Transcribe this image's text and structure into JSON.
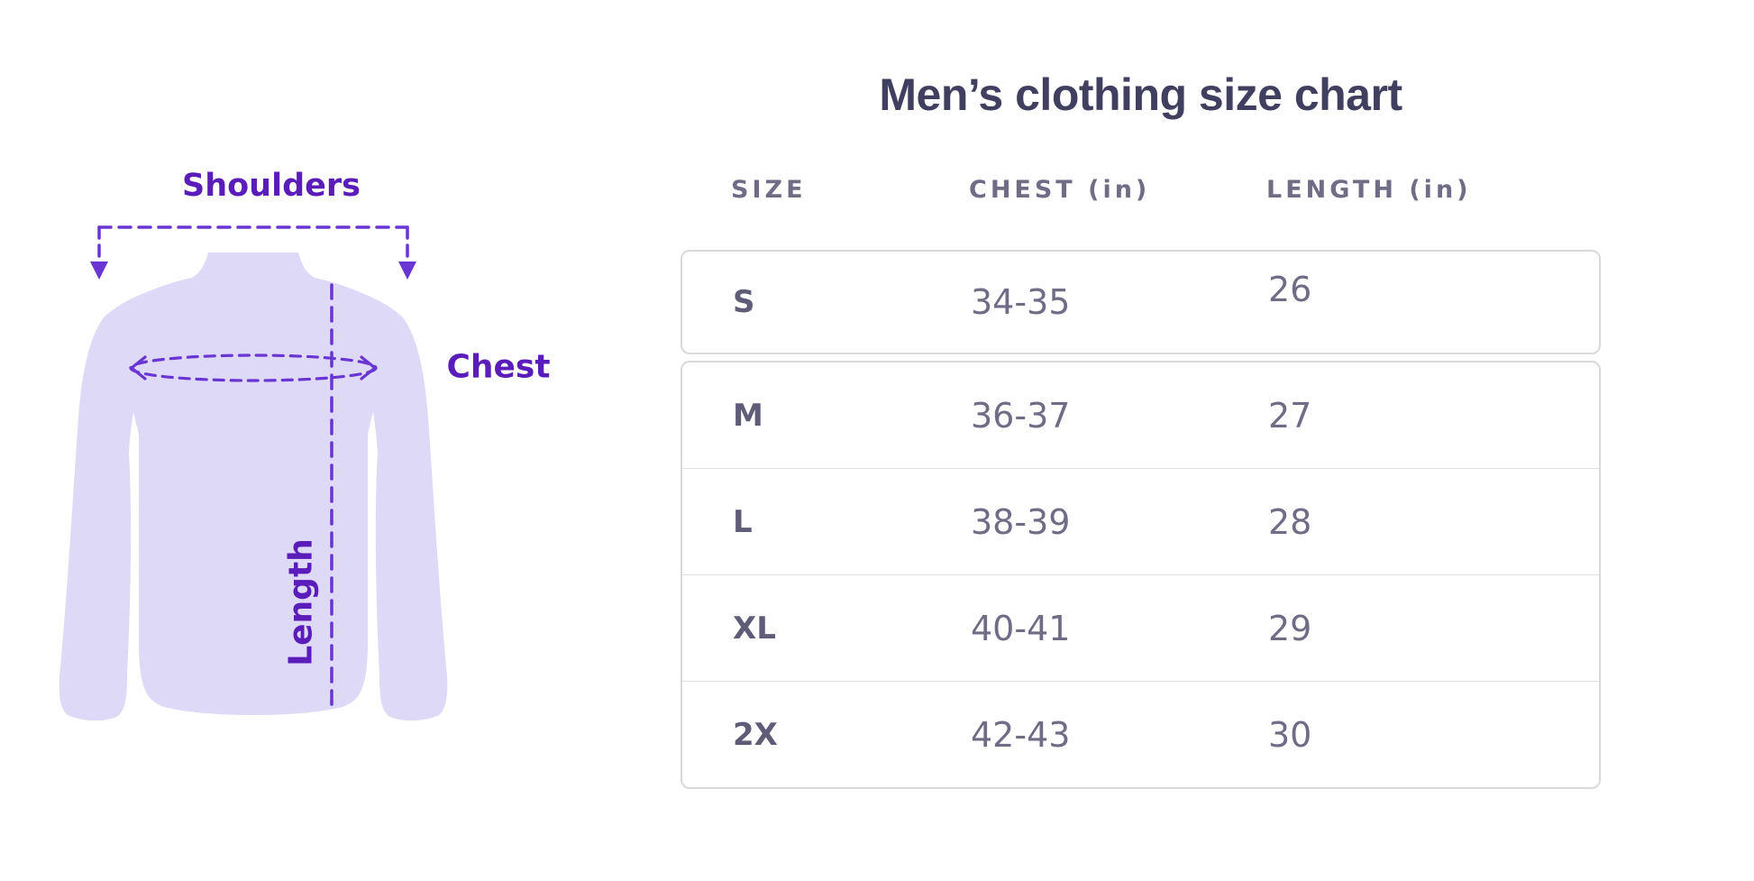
{
  "title": "Men’s clothing size chart",
  "figure": {
    "labels": {
      "shoulders": "Shoulders",
      "chest": "Chest",
      "length": "Length"
    }
  },
  "table": {
    "columns": [
      "SIZE",
      "CHEST (in)",
      "LENGTH (in)"
    ],
    "rows": [
      {
        "size": "S",
        "chest": "34-35",
        "length": "26"
      },
      {
        "size": "M",
        "chest": "36-37",
        "length": "27"
      },
      {
        "size": "L",
        "chest": "38-39",
        "length": "28"
      },
      {
        "size": "XL",
        "chest": "40-41",
        "length": "29"
      },
      {
        "size": "2X",
        "chest": "42-43",
        "length": "30"
      }
    ]
  },
  "chart_data": {
    "type": "table",
    "title": "Men’s clothing size chart",
    "columns": [
      "SIZE",
      "CHEST (in)",
      "LENGTH (in)"
    ],
    "rows": [
      [
        "S",
        "34-35",
        "26"
      ],
      [
        "M",
        "36-37",
        "27"
      ],
      [
        "L",
        "38-39",
        "28"
      ],
      [
        "XL",
        "40-41",
        "29"
      ],
      [
        "2X",
        "42-43",
        "30"
      ]
    ]
  },
  "colors": {
    "accent_purple": "#5a1db9",
    "line_purple": "#6936d3",
    "shirt_fill": "#ded9f7",
    "title_text": "#413f60",
    "table_text": "#6f6c86",
    "size_text": "#5f5c78",
    "card_border": "#d9d9d9"
  }
}
